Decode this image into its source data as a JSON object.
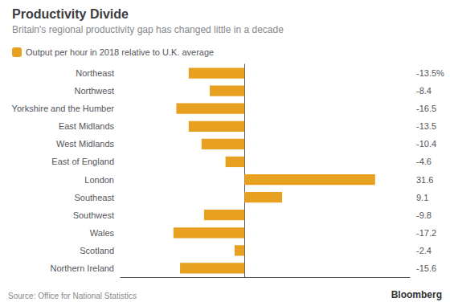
{
  "chart_data": {
    "type": "bar",
    "orientation": "horizontal",
    "title": "Productivity Divide",
    "subtitle": "Britain's regional productivity gap has changed little in a decade",
    "annotations": [
      "Source: Office for National Statistics",
      "Bloomberg"
    ],
    "categories": [
      "Northeast",
      "Northwest",
      "Yorkshire and the Humber",
      "East Midlands",
      "West Midlands",
      "East of England",
      "London",
      "Southeast",
      "Southwest",
      "Wales",
      "Scotland",
      "Northern Ireland"
    ],
    "series": [
      {
        "name": "Output per hour in 2018 relative to U.K. average",
        "color": "#E8A020",
        "values": [
          -13.5,
          -8.4,
          -16.5,
          -13.5,
          -10.4,
          -4.6,
          31.6,
          9.1,
          -9.8,
          -17.2,
          -2.4,
          -15.6
        ],
        "value_labels": [
          "-13.5%",
          "-8.4",
          "-16.5",
          "-13.5",
          "-10.4",
          "-4.6",
          "31.6",
          "9.1",
          "-9.8",
          "-17.2",
          "-2.4",
          "-15.6"
        ]
      }
    ],
    "xlim": [
      -30,
      40
    ],
    "tick_labels": "y",
    "data_labels": true,
    "grid": false,
    "legend": "upper left"
  }
}
